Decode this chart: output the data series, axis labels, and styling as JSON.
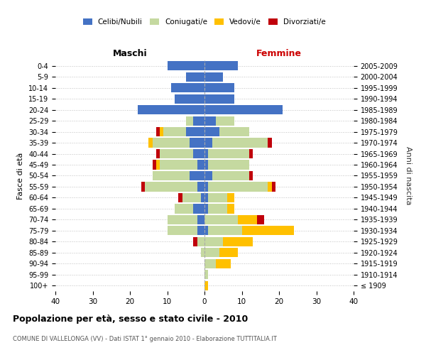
{
  "age_groups": [
    "100+",
    "95-99",
    "90-94",
    "85-89",
    "80-84",
    "75-79",
    "70-74",
    "65-69",
    "60-64",
    "55-59",
    "50-54",
    "45-49",
    "40-44",
    "35-39",
    "30-34",
    "25-29",
    "20-24",
    "15-19",
    "10-14",
    "5-9",
    "0-4"
  ],
  "birth_years": [
    "≤ 1909",
    "1910-1914",
    "1915-1919",
    "1920-1924",
    "1925-1929",
    "1930-1934",
    "1935-1939",
    "1940-1944",
    "1945-1949",
    "1950-1954",
    "1955-1959",
    "1960-1964",
    "1965-1969",
    "1970-1974",
    "1975-1979",
    "1980-1984",
    "1985-1989",
    "1990-1994",
    "1995-1999",
    "2000-2004",
    "2005-2009"
  ],
  "male": {
    "celibi": [
      0,
      0,
      0,
      0,
      0,
      2,
      2,
      3,
      1,
      2,
      4,
      2,
      3,
      4,
      5,
      3,
      18,
      8,
      9,
      5,
      10
    ],
    "coniugati": [
      0,
      0,
      0,
      1,
      2,
      8,
      8,
      5,
      5,
      14,
      10,
      10,
      9,
      10,
      6,
      2,
      0,
      0,
      0,
      0,
      0
    ],
    "vedovi": [
      0,
      0,
      0,
      0,
      0,
      0,
      0,
      0,
      0,
      0,
      0,
      1,
      0,
      1,
      1,
      0,
      0,
      0,
      0,
      0,
      0
    ],
    "divorziati": [
      0,
      0,
      0,
      0,
      1,
      0,
      0,
      0,
      1,
      1,
      0,
      1,
      1,
      0,
      1,
      0,
      0,
      0,
      0,
      0,
      0
    ]
  },
  "female": {
    "nubili": [
      0,
      0,
      0,
      0,
      0,
      1,
      0,
      1,
      1,
      1,
      2,
      1,
      1,
      2,
      4,
      3,
      21,
      8,
      8,
      5,
      9
    ],
    "coniugate": [
      0,
      1,
      3,
      4,
      5,
      9,
      9,
      5,
      5,
      16,
      10,
      11,
      11,
      15,
      8,
      5,
      0,
      0,
      0,
      0,
      0
    ],
    "vedove": [
      1,
      0,
      4,
      5,
      8,
      14,
      5,
      2,
      2,
      1,
      0,
      0,
      0,
      0,
      0,
      0,
      0,
      0,
      0,
      0,
      0
    ],
    "divorziate": [
      0,
      0,
      0,
      0,
      0,
      0,
      2,
      0,
      0,
      1,
      1,
      0,
      1,
      1,
      0,
      0,
      0,
      0,
      0,
      0,
      0
    ]
  },
  "color_celibi": "#4472c4",
  "color_coniugati": "#c5d9a0",
  "color_vedovi": "#ffc000",
  "color_divorziati": "#c0000b",
  "xlim": 40,
  "title": "Popolazione per età, sesso e stato civile - 2010",
  "subtitle": "COMUNE DI VALLELONGA (VV) - Dati ISTAT 1° gennaio 2010 - Elaborazione TUTTITALIA.IT",
  "ylabel_left": "Fasce di età",
  "ylabel_right": "Anni di nascita",
  "xlabel_left": "Maschi",
  "xlabel_right": "Femmine",
  "bg_color": "#ffffff"
}
